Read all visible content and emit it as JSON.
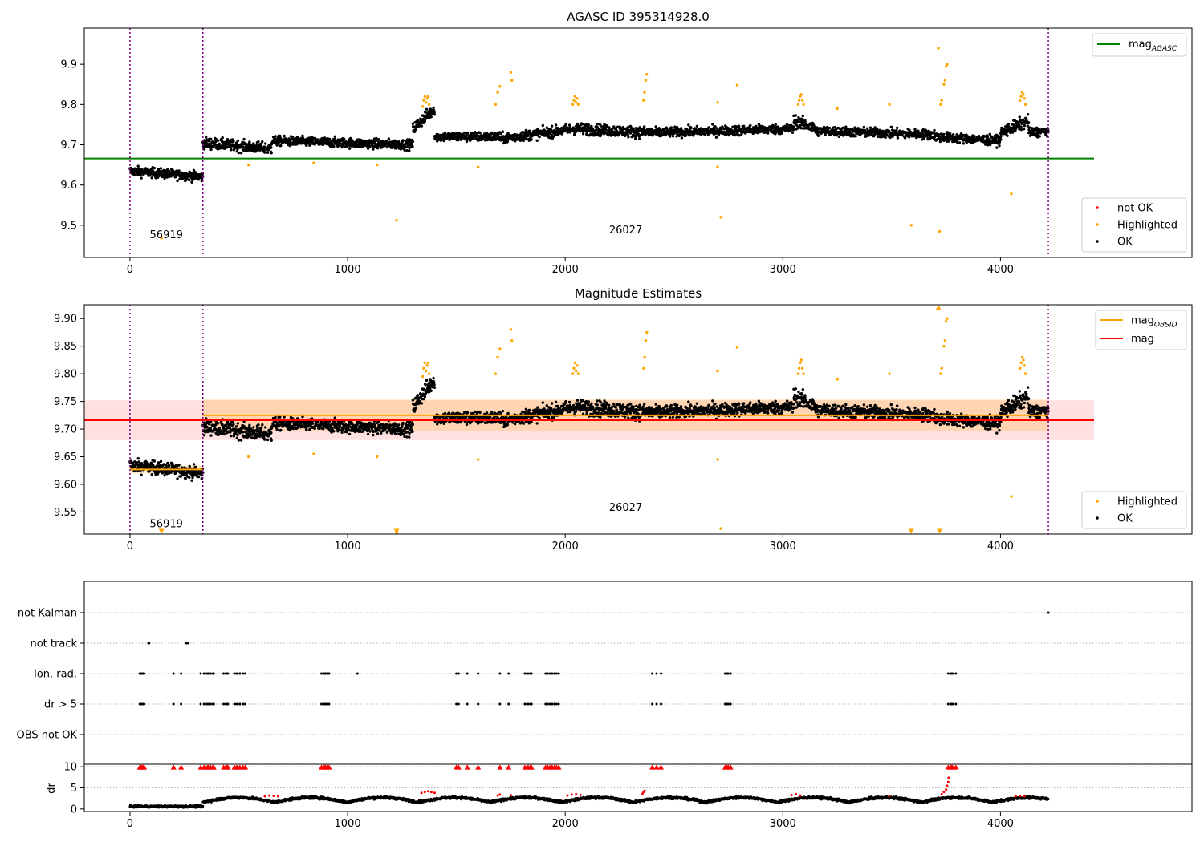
{
  "chart_data": [
    {
      "type": "scatter",
      "title": "AGASC ID 395314928.0",
      "xlim": [
        -210,
        4880
      ],
      "ylim": [
        9.42,
        9.99
      ],
      "xticks": [
        0,
        1000,
        2000,
        3000,
        4000
      ],
      "yticks": [
        9.5,
        9.6,
        9.7,
        9.8,
        9.9
      ],
      "ytick_labels": [
        "9.5",
        "9.6",
        "9.7",
        "9.8",
        "9.9"
      ],
      "obsid_boundaries": [
        0,
        335,
        4220
      ],
      "obsid_labels": [
        {
          "text": "56919",
          "x": 167,
          "y": 9.468
        },
        {
          "text": "26027",
          "x": 2278,
          "y": 9.48
        }
      ],
      "hlines": [
        {
          "name": "mag_AGASC",
          "y": 9.666,
          "x_range": [
            -210,
            4430
          ],
          "color": "#008000"
        }
      ],
      "legend_top": {
        "placement": "top-right",
        "entries": [
          {
            "label": "mag",
            "sub": "AGASC",
            "color": "#008000",
            "kind": "line"
          }
        ]
      },
      "legend_bottom": {
        "placement": "lower-right",
        "entries": [
          {
            "label": "not OK",
            "color": "#ff0000",
            "kind": "point"
          },
          {
            "label": "Highlighted",
            "color": "#ffa500",
            "kind": "point"
          },
          {
            "label": "OK",
            "color": "#000000",
            "kind": "point"
          }
        ]
      },
      "series": [
        {
          "name": "OK",
          "color": "#000000",
          "segments": [
            {
              "x": [
                0,
                335
              ],
              "y": [
                9.635,
                9.62
              ],
              "noise": 0.012
            },
            {
              "x": [
                335,
                650
              ],
              "y": [
                9.705,
                9.69
              ],
              "noise": 0.014
            },
            {
              "x": [
                650,
                1300
              ],
              "y": [
                9.71,
                9.7
              ],
              "noise": 0.012
            },
            {
              "x": [
                1300,
                1400
              ],
              "y": [
                9.74,
                9.79
              ],
              "noise": 0.015
            },
            {
              "x": [
                1400,
                1700
              ],
              "y": [
                9.72,
                9.72
              ],
              "noise": 0.012
            },
            {
              "x": [
                1700,
                2050
              ],
              "y": [
                9.715,
                9.74
              ],
              "noise": 0.013
            },
            {
              "x": [
                2050,
                2400
              ],
              "y": [
                9.74,
                9.73
              ],
              "noise": 0.014
            },
            {
              "x": [
                2400,
                3050
              ],
              "y": [
                9.73,
                9.74
              ],
              "noise": 0.012
            },
            {
              "x": [
                3050,
                3150
              ],
              "y": [
                9.76,
                9.74
              ],
              "noise": 0.015
            },
            {
              "x": [
                3150,
                3700
              ],
              "y": [
                9.735,
                9.725
              ],
              "noise": 0.012
            },
            {
              "x": [
                3700,
                4000
              ],
              "y": [
                9.72,
                9.71
              ],
              "noise": 0.012
            },
            {
              "x": [
                4000,
                4130
              ],
              "y": [
                9.73,
                9.76
              ],
              "noise": 0.015
            },
            {
              "x": [
                4130,
                4220
              ],
              "y": [
                9.73,
                9.735
              ],
              "noise": 0.012
            }
          ]
        },
        {
          "name": "Highlighted",
          "color": "#ffa500",
          "points": [
            [
              1350,
              9.81
            ],
            [
              1355,
              9.82
            ],
            [
              1360,
              9.805
            ],
            [
              1365,
              9.815
            ],
            [
              1370,
              9.82
            ],
            [
              1375,
              9.8
            ],
            [
              1345,
              9.795
            ],
            [
              1680,
              9.8
            ],
            [
              1690,
              9.83
            ],
            [
              1700,
              9.845
            ],
            [
              1750,
              9.88
            ],
            [
              1755,
              9.86
            ],
            [
              2035,
              9.8
            ],
            [
              2040,
              9.81
            ],
            [
              2045,
              9.82
            ],
            [
              2050,
              9.805
            ],
            [
              2055,
              9.815
            ],
            [
              2060,
              9.8
            ],
            [
              2360,
              9.81
            ],
            [
              2365,
              9.83
            ],
            [
              2370,
              9.86
            ],
            [
              2375,
              9.875
            ],
            [
              3070,
              9.8
            ],
            [
              3075,
              9.81
            ],
            [
              3080,
              9.82
            ],
            [
              3085,
              9.825
            ],
            [
              3090,
              9.81
            ],
            [
              3095,
              9.8
            ],
            [
              3725,
              9.8
            ],
            [
              3730,
              9.81
            ],
            [
              3740,
              9.85
            ],
            [
              3745,
              9.86
            ],
            [
              3750,
              9.895
            ],
            [
              3755,
              9.9
            ],
            [
              4090,
              9.81
            ],
            [
              4095,
              9.82
            ],
            [
              4100,
              9.83
            ],
            [
              4105,
              9.825
            ],
            [
              4110,
              9.815
            ],
            [
              4115,
              9.8
            ],
            [
              2790,
              9.848
            ],
            [
              3250,
              9.79
            ],
            [
              3490,
              9.8
            ],
            [
              2700,
              9.805
            ],
            [
              145,
              9.468
            ],
            [
              1225,
              9.512
            ],
            [
              2715,
              9.52
            ],
            [
              3590,
              9.5
            ],
            [
              3720,
              9.485
            ],
            [
              4050,
              9.578
            ],
            [
              3715,
              9.94
            ],
            [
              545,
              9.65
            ],
            [
              845,
              9.655
            ],
            [
              1135,
              9.65
            ],
            [
              1600,
              9.645
            ],
            [
              2700,
              9.645
            ]
          ]
        }
      ]
    },
    {
      "type": "scatter",
      "title": "Magnitude Estimates",
      "xlim": [
        -210,
        4880
      ],
      "ylim": [
        9.51,
        9.925
      ],
      "xticks": [
        0,
        1000,
        2000,
        3000,
        4000
      ],
      "yticks": [
        9.55,
        9.6,
        9.65,
        9.7,
        9.75,
        9.8,
        9.85,
        9.9
      ],
      "ytick_labels": [
        "9.55",
        "9.60",
        "9.65",
        "9.70",
        "9.75",
        "9.80",
        "9.85",
        "9.90"
      ],
      "obsid_boundaries": [
        0,
        335,
        4220
      ],
      "obsid_labels": [
        {
          "text": "56919",
          "x": 167,
          "y": 9.522
        },
        {
          "text": "26027",
          "x": 2278,
          "y": 9.552
        }
      ],
      "bands": [
        {
          "x_range": [
            -210,
            4430
          ],
          "y_range": [
            9.68,
            9.752
          ],
          "color": "#ff0000",
          "opacity": 0.12
        },
        {
          "x_range": [
            335,
            4220
          ],
          "y_range": [
            9.697,
            9.755
          ],
          "color": "#ffa500",
          "opacity": 0.2
        },
        {
          "x_range": [
            0,
            335
          ],
          "y_range": [
            9.62,
            9.634
          ],
          "color": "#ffa500",
          "opacity": 0.25
        }
      ],
      "hlines": [
        {
          "name": "mag_OBSID",
          "y": 9.627,
          "x_range": [
            0,
            335
          ],
          "color": "#ffa500"
        },
        {
          "name": "mag_OBSID",
          "y": 9.725,
          "x_range": [
            335,
            4220
          ],
          "color": "#ffa500"
        },
        {
          "name": "mag",
          "y": 9.716,
          "x_range": [
            -210,
            4430
          ],
          "color": "#ff0000"
        }
      ],
      "legend_top": {
        "placement": "top-right",
        "entries": [
          {
            "label": "mag",
            "sub": "OBSID",
            "color": "#ffa500",
            "kind": "line"
          },
          {
            "label": "mag",
            "sub": "",
            "color": "#ff0000",
            "kind": "line"
          }
        ]
      },
      "legend_bottom": {
        "placement": "lower-right",
        "entries": [
          {
            "label": "Highlighted",
            "color": "#ffa500",
            "kind": "point"
          },
          {
            "label": "OK",
            "color": "#000000",
            "kind": "point"
          }
        ]
      },
      "series": [
        {
          "name": "OK",
          "color": "#000000",
          "same_as_panel": 0
        },
        {
          "name": "Highlighted",
          "color": "#ffa500",
          "same_as_panel": 0
        },
        {
          "name": "Highlighted (below range)",
          "color": "#ffa500",
          "marker": "triangle-down",
          "points": [
            [
              145,
              9.51
            ],
            [
              1225,
              9.51
            ],
            [
              3590,
              9.51
            ],
            [
              3720,
              9.51
            ],
            [
              3715,
              9.925
            ]
          ]
        }
      ]
    },
    {
      "type": "scatter",
      "title": "",
      "xlim": [
        -210,
        4880
      ],
      "category_axis": [
        "not Kalman",
        "not track",
        "Ion. rad.",
        "dr > 5",
        "OBS not OK"
      ],
      "flags": {
        "not Kalman": [
          4220
        ],
        "not track": [
          85,
          88,
          260,
          265
        ],
        "Ion. rad.": [
          45,
          50,
          55,
          60,
          65,
          200,
          235,
          325,
          340,
          345,
          355,
          360,
          370,
          380,
          385,
          430,
          440,
          445,
          450,
          480,
          490,
          495,
          505,
          520,
          530,
          880,
          890,
          895,
          900,
          910,
          915,
          1045,
          1500,
          1510,
          1550,
          1600,
          1700,
          1740,
          1815,
          1825,
          1830,
          1840,
          1845,
          1910,
          1920,
          1930,
          1940,
          1950,
          1960,
          1970,
          2400,
          2420,
          2440,
          2735,
          2740,
          2745,
          2750,
          2760,
          3760,
          3770,
          3775,
          3780,
          3795
        ],
        "dr > 5": [
          45,
          50,
          55,
          60,
          65,
          200,
          235,
          325,
          340,
          345,
          355,
          360,
          370,
          380,
          385,
          430,
          440,
          445,
          450,
          480,
          490,
          495,
          505,
          520,
          530,
          880,
          890,
          895,
          900,
          910,
          915,
          1500,
          1510,
          1550,
          1600,
          1700,
          1740,
          1815,
          1825,
          1830,
          1840,
          1845,
          1910,
          1920,
          1930,
          1940,
          1950,
          1960,
          1970,
          2400,
          2420,
          2440,
          2735,
          2740,
          2745,
          2750,
          2760,
          3760,
          3770,
          3775,
          3780,
          3795
        ],
        "OBS not OK": []
      }
    },
    {
      "type": "scatter",
      "title": "",
      "xlim": [
        -210,
        4880
      ],
      "ylabel": "dr",
      "ylim": [
        -0.6,
        10.6
      ],
      "yticks": [
        0,
        5,
        10
      ],
      "ytick_labels": [
        "0",
        "5",
        "10"
      ],
      "series": [
        {
          "name": "dr OK",
          "color": "#000000",
          "segments": [
            {
              "x": [
                0,
                335
              ],
              "y": [
                0.6,
                0.6
              ],
              "noise": 0.25
            },
            {
              "x": [
                335,
                4220
              ],
              "y": [
                1.6,
                1.6
              ],
              "noise": 0.3,
              "wave": 1.1,
              "period": 330
            }
          ]
        },
        {
          "name": "dr > 5 clipped",
          "color": "#ff0000",
          "marker": "triangle-up",
          "y": 10,
          "same_as_flag": "dr > 5"
        },
        {
          "name": "dr high",
          "color": "#ff0000",
          "points": [
            [
              620,
              3.0
            ],
            [
              640,
              3.2
            ],
            [
              660,
              3.1
            ],
            [
              680,
              3.0
            ],
            [
              1340,
              3.8
            ],
            [
              1355,
              4.0
            ],
            [
              1370,
              4.2
            ],
            [
              1385,
              4.0
            ],
            [
              1400,
              3.8
            ],
            [
              1690,
              3.2
            ],
            [
              1700,
              3.4
            ],
            [
              1750,
              3.3
            ],
            [
              2010,
              3.2
            ],
            [
              2030,
              3.4
            ],
            [
              2050,
              3.5
            ],
            [
              2070,
              3.3
            ],
            [
              2355,
              3.6
            ],
            [
              2360,
              4.0
            ],
            [
              2365,
              4.3
            ],
            [
              3040,
              3.3
            ],
            [
              3060,
              3.5
            ],
            [
              3080,
              3.2
            ],
            [
              3730,
              3.5
            ],
            [
              3740,
              4.0
            ],
            [
              3750,
              4.6
            ],
            [
              3755,
              5.5
            ],
            [
              3760,
              6.4
            ],
            [
              3762,
              7.4
            ],
            [
              4070,
              3.0
            ],
            [
              4090,
              3.1
            ],
            [
              4110,
              3.0
            ],
            [
              3490,
              3.1
            ]
          ]
        }
      ]
    }
  ]
}
